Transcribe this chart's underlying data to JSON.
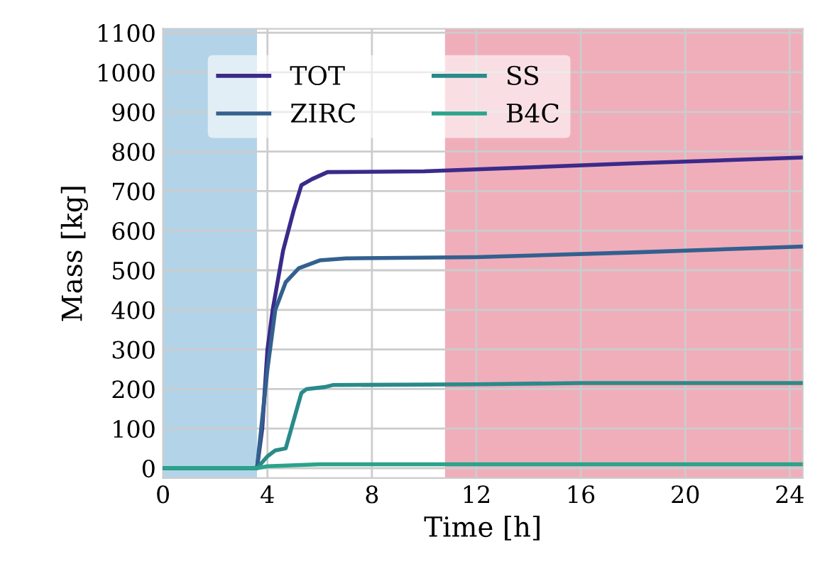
{
  "chart_data": {
    "type": "line",
    "xlabel": "Time [h]",
    "ylabel": "Mass [kg]",
    "xlim": [
      0,
      24.5
    ],
    "ylim": [
      -25,
      1110
    ],
    "xticks": [
      0,
      4,
      8,
      12,
      16,
      20,
      24
    ],
    "yticks": [
      0,
      100,
      200,
      300,
      400,
      500,
      600,
      700,
      800,
      900,
      1000,
      1100
    ],
    "grid": true,
    "legend": "top left",
    "bands": [
      {
        "axis": "x",
        "from": 0,
        "to": 3.6,
        "color": "#b3d4e8"
      },
      {
        "axis": "x",
        "from": 10.8,
        "to": 24.5,
        "color": "#f0aebb"
      }
    ],
    "series": [
      {
        "name": "TOT",
        "color": "#3b2a8a",
        "x": [
          0,
          3.6,
          3.8,
          4.0,
          4.2,
          4.6,
          5.0,
          5.3,
          5.7,
          6.3,
          10,
          14,
          18,
          24.5
        ],
        "values": [
          0,
          0,
          100,
          300,
          400,
          550,
          650,
          715,
          730,
          748,
          750,
          760,
          770,
          785
        ]
      },
      {
        "name": "ZIRC",
        "color": "#33608f",
        "x": [
          0,
          3.6,
          4.0,
          4.3,
          4.7,
          5.2,
          6,
          7,
          12,
          18,
          24.5
        ],
        "values": [
          0,
          0,
          250,
          400,
          470,
          505,
          525,
          530,
          533,
          545,
          560
        ]
      },
      {
        "name": "SS",
        "color": "#2a8a8a",
        "x": [
          0,
          3.6,
          4.0,
          4.3,
          4.7,
          5.0,
          5.3,
          5.5,
          6.2,
          6.5,
          12,
          16,
          24.5
        ],
        "values": [
          0,
          0,
          30,
          45,
          50,
          120,
          190,
          200,
          205,
          210,
          212,
          215,
          215
        ]
      },
      {
        "name": "B4C",
        "color": "#2aa38a",
        "x": [
          0,
          3.6,
          4.0,
          6,
          24.5
        ],
        "values": [
          0,
          0,
          5,
          10,
          10
        ]
      }
    ]
  }
}
